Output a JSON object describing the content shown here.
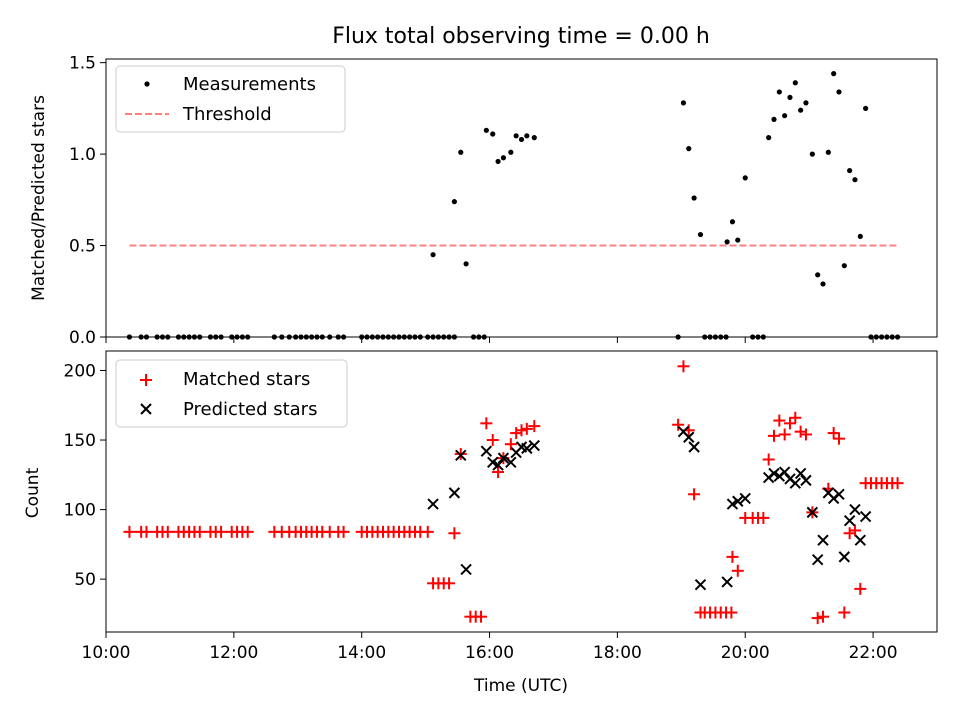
{
  "chart_data": [
    {
      "type": "scatter",
      "title": "Flux total observing time = 0.00 h",
      "xlabel": "",
      "ylabel": "Matched/Predicted stars",
      "xlim": [
        "10:00",
        "23:00"
      ],
      "ylim": [
        0,
        1.52
      ],
      "y_ticks": [
        "0.0",
        "0.5",
        "1.0",
        "1.5"
      ],
      "legend_position": "top-left",
      "series": [
        {
          "name": "Measurements",
          "style": "dot",
          "color": "#000000",
          "points": [
            [
              "10:22",
              0
            ],
            [
              "10:33",
              0
            ],
            [
              "10:38",
              0
            ],
            [
              "10:48",
              0
            ],
            [
              "10:53",
              0
            ],
            [
              "10:58",
              0
            ],
            [
              "11:08",
              0
            ],
            [
              "11:13",
              0
            ],
            [
              "11:18",
              0
            ],
            [
              "11:23",
              0
            ],
            [
              "11:28",
              0
            ],
            [
              "11:38",
              0
            ],
            [
              "11:43",
              0
            ],
            [
              "11:48",
              0
            ],
            [
              "11:58",
              0
            ],
            [
              "12:03",
              0
            ],
            [
              "12:08",
              0
            ],
            [
              "12:13",
              0
            ],
            [
              "12:38",
              0
            ],
            [
              "12:45",
              0
            ],
            [
              "12:52",
              0
            ],
            [
              "12:58",
              0
            ],
            [
              "13:03",
              0
            ],
            [
              "13:08",
              0
            ],
            [
              "13:13",
              0
            ],
            [
              "13:18",
              0
            ],
            [
              "13:23",
              0
            ],
            [
              "13:30",
              0
            ],
            [
              "13:38",
              0
            ],
            [
              "13:43",
              0
            ],
            [
              "14:00",
              0
            ],
            [
              "14:05",
              0
            ],
            [
              "14:10",
              0
            ],
            [
              "14:15",
              0
            ],
            [
              "14:20",
              0
            ],
            [
              "14:25",
              0
            ],
            [
              "14:30",
              0
            ],
            [
              "14:35",
              0
            ],
            [
              "14:40",
              0
            ],
            [
              "14:45",
              0
            ],
            [
              "14:50",
              0
            ],
            [
              "14:55",
              0
            ],
            [
              "15:02",
              0
            ],
            [
              "15:07",
              0
            ],
            [
              "15:12",
              0
            ],
            [
              "15:17",
              0
            ],
            [
              "15:22",
              0
            ],
            [
              "15:27",
              0
            ],
            [
              "15:45",
              0
            ],
            [
              "15:50",
              0
            ],
            [
              "15:55",
              0
            ],
            [
              "15:07",
              0.45
            ],
            [
              "15:27",
              0.74
            ],
            [
              "15:33",
              1.01
            ],
            [
              "15:38",
              0.4
            ],
            [
              "15:57",
              1.13
            ],
            [
              "16:03",
              1.11
            ],
            [
              "16:08",
              0.96
            ],
            [
              "16:13",
              0.98
            ],
            [
              "16:20",
              1.01
            ],
            [
              "16:25",
              1.1
            ],
            [
              "16:30",
              1.08
            ],
            [
              "16:35",
              1.1
            ],
            [
              "16:42",
              1.09
            ],
            [
              "18:57",
              0
            ],
            [
              "19:22",
              0
            ],
            [
              "19:27",
              0
            ],
            [
              "19:32",
              0
            ],
            [
              "19:37",
              0
            ],
            [
              "19:42",
              0
            ],
            [
              "20:07",
              0
            ],
            [
              "20:12",
              0
            ],
            [
              "20:17",
              0
            ],
            [
              "19:02",
              1.28
            ],
            [
              "19:07",
              1.03
            ],
            [
              "19:12",
              0.76
            ],
            [
              "19:18",
              0.56
            ],
            [
              "19:43",
              0.52
            ],
            [
              "19:48",
              0.63
            ],
            [
              "19:53",
              0.53
            ],
            [
              "20:00",
              0.87
            ],
            [
              "20:22",
              1.09
            ],
            [
              "20:27",
              1.19
            ],
            [
              "20:32",
              1.34
            ],
            [
              "20:37",
              1.21
            ],
            [
              "20:42",
              1.31
            ],
            [
              "20:47",
              1.39
            ],
            [
              "20:52",
              1.24
            ],
            [
              "20:57",
              1.28
            ],
            [
              "21:03",
              1.0
            ],
            [
              "21:08",
              0.34
            ],
            [
              "21:13",
              0.29
            ],
            [
              "21:18",
              1.01
            ],
            [
              "21:23",
              1.44
            ],
            [
              "21:28",
              1.34
            ],
            [
              "21:33",
              0.39
            ],
            [
              "21:38",
              0.91
            ],
            [
              "21:43",
              0.86
            ],
            [
              "21:48",
              0.55
            ],
            [
              "21:53",
              1.25
            ],
            [
              "21:58",
              0
            ],
            [
              "22:03",
              0
            ],
            [
              "22:08",
              0
            ],
            [
              "22:13",
              0
            ],
            [
              "22:18",
              0
            ],
            [
              "22:23",
              0
            ]
          ]
        },
        {
          "name": "Threshold",
          "style": "dashed-line",
          "color": "#ff8080",
          "points": [
            [
              "10:22",
              0.5
            ],
            [
              "22:23",
              0.5
            ]
          ]
        }
      ]
    },
    {
      "type": "scatter",
      "title": "",
      "xlabel": "Time (UTC)",
      "ylabel": "Count",
      "xlim": [
        "10:00",
        "23:00"
      ],
      "ylim": [
        12,
        214
      ],
      "x_ticks": [
        "10:00",
        "12:00",
        "14:00",
        "16:00",
        "18:00",
        "20:00",
        "22:00"
      ],
      "y_ticks": [
        "50",
        "100",
        "150",
        "200"
      ],
      "legend_position": "top-left",
      "series": [
        {
          "name": "Matched stars",
          "marker": "plus",
          "color": "#ff0000",
          "points": [
            [
              "10:22",
              84
            ],
            [
              "10:33",
              84
            ],
            [
              "10:38",
              84
            ],
            [
              "10:48",
              84
            ],
            [
              "10:53",
              84
            ],
            [
              "10:58",
              84
            ],
            [
              "11:08",
              84
            ],
            [
              "11:13",
              84
            ],
            [
              "11:18",
              84
            ],
            [
              "11:23",
              84
            ],
            [
              "11:28",
              84
            ],
            [
              "11:38",
              84
            ],
            [
              "11:43",
              84
            ],
            [
              "11:48",
              84
            ],
            [
              "11:58",
              84
            ],
            [
              "12:03",
              84
            ],
            [
              "12:08",
              84
            ],
            [
              "12:13",
              84
            ],
            [
              "12:38",
              84
            ],
            [
              "12:45",
              84
            ],
            [
              "12:52",
              84
            ],
            [
              "12:58",
              84
            ],
            [
              "13:03",
              84
            ],
            [
              "13:08",
              84
            ],
            [
              "13:13",
              84
            ],
            [
              "13:18",
              84
            ],
            [
              "13:23",
              84
            ],
            [
              "13:30",
              84
            ],
            [
              "13:38",
              84
            ],
            [
              "13:43",
              84
            ],
            [
              "14:00",
              84
            ],
            [
              "14:05",
              84
            ],
            [
              "14:10",
              84
            ],
            [
              "14:15",
              84
            ],
            [
              "14:20",
              84
            ],
            [
              "14:25",
              84
            ],
            [
              "14:30",
              84
            ],
            [
              "14:35",
              84
            ],
            [
              "14:40",
              84
            ],
            [
              "14:45",
              84
            ],
            [
              "14:50",
              84
            ],
            [
              "14:55",
              84
            ],
            [
              "15:02",
              84
            ],
            [
              "15:07",
              47
            ],
            [
              "15:12",
              47
            ],
            [
              "15:17",
              47
            ],
            [
              "15:22",
              47
            ],
            [
              "15:27",
              83
            ],
            [
              "15:33",
              140
            ],
            [
              "15:42",
              23
            ],
            [
              "15:47",
              23
            ],
            [
              "15:52",
              23
            ],
            [
              "15:57",
              162
            ],
            [
              "16:03",
              150
            ],
            [
              "16:08",
              127
            ],
            [
              "16:13",
              137
            ],
            [
              "16:20",
              147
            ],
            [
              "16:25",
              155
            ],
            [
              "16:30",
              157
            ],
            [
              "16:35",
              158
            ],
            [
              "16:42",
              160
            ],
            [
              "18:57",
              161
            ],
            [
              "19:02",
              203
            ],
            [
              "19:07",
              157
            ],
            [
              "19:12",
              111
            ],
            [
              "19:18",
              26
            ],
            [
              "19:22",
              26
            ],
            [
              "19:27",
              26
            ],
            [
              "19:32",
              26
            ],
            [
              "19:37",
              26
            ],
            [
              "19:42",
              26
            ],
            [
              "19:47",
              26
            ],
            [
              "19:48",
              66
            ],
            [
              "19:53",
              56
            ],
            [
              "20:00",
              94
            ],
            [
              "20:07",
              94
            ],
            [
              "20:12",
              94
            ],
            [
              "20:17",
              94
            ],
            [
              "20:22",
              136
            ],
            [
              "20:27",
              153
            ],
            [
              "20:32",
              164
            ],
            [
              "20:37",
              154
            ],
            [
              "20:42",
              162
            ],
            [
              "20:47",
              166
            ],
            [
              "20:52",
              156
            ],
            [
              "20:57",
              154
            ],
            [
              "21:03",
              98
            ],
            [
              "21:08",
              22
            ],
            [
              "21:13",
              23
            ],
            [
              "21:18",
              115
            ],
            [
              "21:23",
              155
            ],
            [
              "21:28",
              151
            ],
            [
              "21:33",
              26
            ],
            [
              "21:38",
              83
            ],
            [
              "21:43",
              85
            ],
            [
              "21:48",
              43
            ],
            [
              "21:53",
              119
            ],
            [
              "21:58",
              119
            ],
            [
              "22:03",
              119
            ],
            [
              "22:08",
              119
            ],
            [
              "22:13",
              119
            ],
            [
              "22:18",
              119
            ],
            [
              "22:23",
              119
            ]
          ]
        },
        {
          "name": "Predicted stars",
          "marker": "cross",
          "color": "#000000",
          "points": [
            [
              "15:07",
              104
            ],
            [
              "15:27",
              112
            ],
            [
              "15:33",
              139
            ],
            [
              "15:38",
              57
            ],
            [
              "15:57",
              142
            ],
            [
              "16:03",
              134
            ],
            [
              "16:08",
              132
            ],
            [
              "16:13",
              137
            ],
            [
              "16:20",
              134
            ],
            [
              "16:25",
              141
            ],
            [
              "16:30",
              145
            ],
            [
              "16:35",
              144
            ],
            [
              "16:42",
              146
            ],
            [
              "19:02",
              156
            ],
            [
              "19:07",
              152
            ],
            [
              "19:12",
              145
            ],
            [
              "19:18",
              46
            ],
            [
              "19:43",
              48
            ],
            [
              "19:48",
              104
            ],
            [
              "19:53",
              106
            ],
            [
              "20:00",
              108
            ],
            [
              "20:22",
              123
            ],
            [
              "20:27",
              126
            ],
            [
              "20:32",
              124
            ],
            [
              "20:37",
              127
            ],
            [
              "20:42",
              122
            ],
            [
              "20:47",
              119
            ],
            [
              "20:52",
              126
            ],
            [
              "20:57",
              121
            ],
            [
              "21:03",
              98
            ],
            [
              "21:08",
              64
            ],
            [
              "21:13",
              78
            ],
            [
              "21:18",
              112
            ],
            [
              "21:23",
              108
            ],
            [
              "21:28",
              111
            ],
            [
              "21:33",
              66
            ],
            [
              "21:38",
              92
            ],
            [
              "21:43",
              100
            ],
            [
              "21:48",
              78
            ],
            [
              "21:53",
              95
            ]
          ]
        }
      ]
    }
  ]
}
